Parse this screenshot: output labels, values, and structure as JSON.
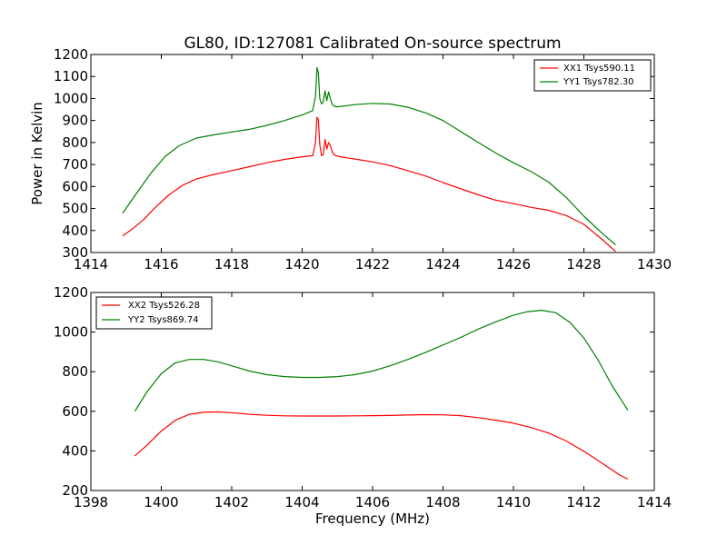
{
  "chart_data": [
    {
      "type": "line",
      "title": "GL80, ID:127081 Calibrated On-source spectrum",
      "xlabel": "",
      "ylabel": "Power in Kelvin",
      "xlim": [
        1414,
        1430
      ],
      "ylim": [
        300,
        1200
      ],
      "xticks": [
        "1414",
        "1416",
        "1418",
        "1420",
        "1422",
        "1424",
        "1426",
        "1428",
        "1430"
      ],
      "yticks": [
        "300",
        "400",
        "500",
        "600",
        "700",
        "800",
        "900",
        "1000",
        "1100",
        "1200"
      ],
      "grid": false,
      "legend_position": "top-right",
      "series": [
        {
          "name": "XX1 Tsys590.11",
          "color": "#ff0000",
          "x": [
            1414.9,
            1415.2,
            1415.5,
            1415.8,
            1416.2,
            1416.6,
            1417.0,
            1417.5,
            1418.0,
            1418.5,
            1419.0,
            1419.5,
            1420.0,
            1420.3,
            1420.38,
            1420.42,
            1420.46,
            1420.5,
            1420.55,
            1420.6,
            1420.65,
            1420.7,
            1420.75,
            1420.8,
            1420.85,
            1420.9,
            1421.0,
            1421.2,
            1421.5,
            1422.0,
            1422.5,
            1423.0,
            1423.5,
            1424.0,
            1424.5,
            1425.0,
            1425.5,
            1426.0,
            1426.5,
            1427.0,
            1427.5,
            1428.0,
            1428.5,
            1428.9
          ],
          "y": [
            375,
            410,
            450,
            500,
            560,
            605,
            635,
            655,
            672,
            690,
            708,
            723,
            735,
            740,
            800,
            915,
            905,
            790,
            740,
            745,
            815,
            770,
            800,
            785,
            760,
            745,
            738,
            732,
            725,
            712,
            695,
            672,
            648,
            618,
            590,
            562,
            538,
            522,
            505,
            492,
            468,
            428,
            362,
            305
          ]
        },
        {
          "name": "YY1 Tsys782.30",
          "color": "#008000",
          "x": [
            1414.9,
            1415.3,
            1415.7,
            1416.1,
            1416.5,
            1417.0,
            1417.5,
            1418.0,
            1418.5,
            1419.0,
            1419.5,
            1420.0,
            1420.3,
            1420.38,
            1420.42,
            1420.46,
            1420.5,
            1420.55,
            1420.6,
            1420.65,
            1420.7,
            1420.75,
            1420.8,
            1420.85,
            1420.9,
            1421.0,
            1421.5,
            1422.0,
            1422.5,
            1423.0,
            1423.5,
            1424.0,
            1424.5,
            1425.0,
            1425.5,
            1426.0,
            1426.5,
            1427.0,
            1427.5,
            1428.0,
            1428.5,
            1428.9
          ],
          "y": [
            478,
            570,
            660,
            735,
            785,
            820,
            835,
            848,
            860,
            878,
            900,
            925,
            945,
            1010,
            1140,
            1120,
            1000,
            975,
            985,
            1035,
            990,
            1030,
            1000,
            975,
            965,
            962,
            972,
            978,
            975,
            960,
            935,
            900,
            850,
            800,
            752,
            708,
            668,
            620,
            550,
            465,
            390,
            335
          ]
        }
      ]
    },
    {
      "type": "line",
      "title": "",
      "xlabel": "Frequency (MHz)",
      "ylabel": "",
      "xlim": [
        1398,
        1414
      ],
      "ylim": [
        200,
        1200
      ],
      "xticks": [
        "1398",
        "1400",
        "1402",
        "1404",
        "1406",
        "1408",
        "1410",
        "1412",
        "1414"
      ],
      "yticks": [
        "200",
        "400",
        "600",
        "800",
        "1000",
        "1200"
      ],
      "grid": false,
      "legend_position": "top-left",
      "series": [
        {
          "name": "XX2 Tsys526.28",
          "color": "#ff0000",
          "x": [
            1399.25,
            1399.6,
            1400.0,
            1400.4,
            1400.8,
            1401.2,
            1401.6,
            1402.0,
            1402.5,
            1403.0,
            1403.5,
            1404.0,
            1404.5,
            1405.0,
            1405.5,
            1406.0,
            1406.5,
            1407.0,
            1407.5,
            1408.0,
            1408.5,
            1409.0,
            1409.5,
            1410.0,
            1410.5,
            1411.0,
            1411.5,
            1412.0,
            1412.5,
            1413.0,
            1413.25
          ],
          "y": [
            375,
            430,
            500,
            555,
            585,
            595,
            597,
            593,
            585,
            580,
            577,
            576,
            576,
            576,
            577,
            578,
            579,
            581,
            583,
            582,
            578,
            568,
            555,
            540,
            518,
            490,
            450,
            398,
            340,
            280,
            258
          ]
        },
        {
          "name": "YY2 Tsys869.74",
          "color": "#008000",
          "x": [
            1399.25,
            1399.6,
            1400.0,
            1400.4,
            1400.8,
            1401.2,
            1401.6,
            1402.0,
            1402.5,
            1403.0,
            1403.5,
            1404.0,
            1404.5,
            1405.0,
            1405.5,
            1406.0,
            1406.5,
            1407.0,
            1407.5,
            1408.0,
            1408.5,
            1409.0,
            1409.5,
            1410.0,
            1410.4,
            1410.8,
            1411.2,
            1411.6,
            1412.0,
            1412.4,
            1412.8,
            1413.25
          ],
          "y": [
            600,
            700,
            790,
            845,
            862,
            862,
            850,
            830,
            803,
            785,
            775,
            771,
            771,
            775,
            785,
            803,
            830,
            862,
            897,
            935,
            973,
            1015,
            1052,
            1085,
            1103,
            1110,
            1098,
            1050,
            970,
            860,
            730,
            605
          ]
        }
      ]
    }
  ]
}
